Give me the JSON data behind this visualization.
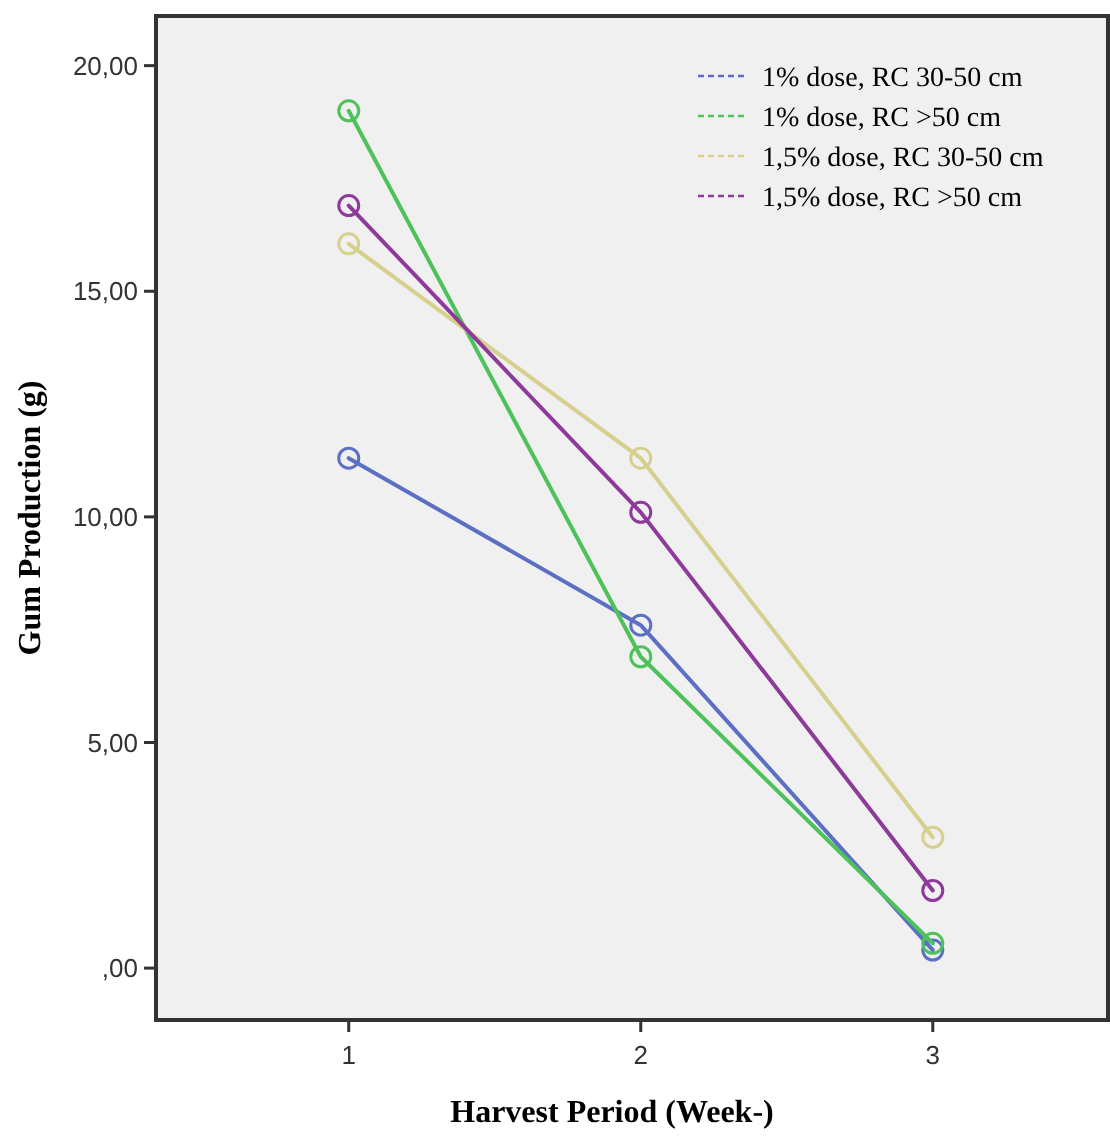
{
  "chart_data": {
    "type": "line",
    "xlabel": "Harvest Period (Week-)",
    "ylabel": "Gum Production (g)",
    "x": [
      1,
      2,
      3
    ],
    "xlim": [
      0.34,
      3.6
    ],
    "xticks": [
      1,
      2,
      3
    ],
    "ylim": [
      -1.15,
      21.1
    ],
    "yticks": [
      {
        "value": 0,
        "label": ",00"
      },
      {
        "value": 5,
        "label": "5,00"
      },
      {
        "value": 10,
        "label": "10,00"
      },
      {
        "value": 15,
        "label": "15,00"
      },
      {
        "value": 20,
        "label": "20,00"
      }
    ],
    "series": [
      {
        "name": "1% dose, RC 30-50 cm",
        "color": "#5b6fc4",
        "values": [
          11.3,
          7.6,
          0.4
        ]
      },
      {
        "name": "1% dose, RC >50 cm",
        "color": "#4ec25a",
        "values": [
          19.0,
          6.9,
          0.55
        ]
      },
      {
        "name": "1,5% dose, RC 30-50 cm",
        "color": "#d6cf8e",
        "values": [
          16.05,
          11.3,
          2.9
        ]
      },
      {
        "name": "1,5% dose, RC >50 cm",
        "color": "#8e3a9a",
        "values": [
          16.9,
          10.1,
          1.72
        ]
      }
    ],
    "legend": "top right",
    "marker": "circle",
    "line_style": "solid",
    "grid": false
  }
}
